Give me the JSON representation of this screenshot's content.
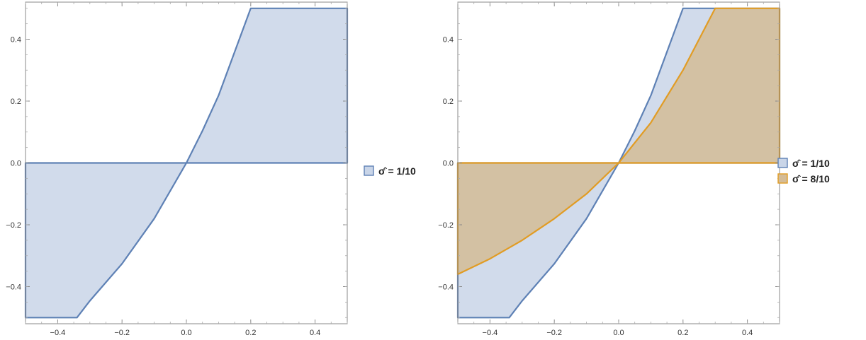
{
  "chart_data": [
    {
      "type": "area",
      "xlim": [
        -0.5,
        0.5
      ],
      "ylim": [
        -0.52,
        0.52
      ],
      "x_ticks": [
        -0.4,
        -0.2,
        0.0,
        0.2,
        0.4
      ],
      "x_tick_labels": [
        "−0.4",
        "−0.2",
        "0.0",
        "0.2",
        "0.4"
      ],
      "y_ticks": [
        -0.4,
        -0.2,
        0.0,
        0.2,
        0.4
      ],
      "y_tick_labels": [
        "−0.4",
        "−0.2",
        "0.0",
        "0.2",
        "0.4"
      ],
      "grid": false,
      "legend": "right",
      "series": [
        {
          "name": "σ̂ = 1/10",
          "color": "#5e81b5",
          "fill": "#c9d5e8",
          "region": [
            [
              0.5,
              0
            ],
            [
              0.5,
              0.5
            ],
            [
              0.2,
              0.5
            ],
            [
              0.1,
              0.218
            ],
            [
              0.05,
              0.104
            ],
            [
              0,
              0
            ],
            [
              -0.1,
              -0.18
            ],
            [
              -0.2,
              -0.326
            ],
            [
              -0.3,
              -0.446
            ],
            [
              -0.34,
              -0.5
            ],
            [
              -0.5,
              -0.5
            ],
            [
              -0.5,
              0
            ],
            [
              0.5,
              0
            ]
          ]
        }
      ]
    },
    {
      "type": "area",
      "xlim": [
        -0.5,
        0.5
      ],
      "ylim": [
        -0.52,
        0.52
      ],
      "x_ticks": [
        -0.4,
        -0.2,
        0.0,
        0.2,
        0.4
      ],
      "x_tick_labels": [
        "−0.4",
        "−0.2",
        "0.0",
        "0.2",
        "0.4"
      ],
      "y_ticks": [
        -0.4,
        -0.2,
        0.0,
        0.2,
        0.4
      ],
      "y_tick_labels": [
        "−0.4",
        "−0.2",
        "0.0",
        "0.2",
        "0.4"
      ],
      "grid": false,
      "legend": "right",
      "series": [
        {
          "name": "σ̂ = 1/10",
          "color": "#5e81b5",
          "fill": "#c9d5e8",
          "region": [
            [
              0.5,
              0
            ],
            [
              0.5,
              0.5
            ],
            [
              0.2,
              0.5
            ],
            [
              0.1,
              0.218
            ],
            [
              0.05,
              0.104
            ],
            [
              0,
              0
            ],
            [
              -0.1,
              -0.18
            ],
            [
              -0.2,
              -0.326
            ],
            [
              -0.3,
              -0.446
            ],
            [
              -0.34,
              -0.5
            ],
            [
              -0.5,
              -0.5
            ],
            [
              -0.5,
              0
            ],
            [
              0.5,
              0
            ]
          ]
        },
        {
          "name": "σ̂ = 8/10",
          "color": "#e19c24",
          "fill": "#d4bc97",
          "region": [
            [
              0.5,
              0
            ],
            [
              0.5,
              0.5
            ],
            [
              0.3,
              0.5
            ],
            [
              0.2,
              0.3
            ],
            [
              0.1,
              0.13
            ],
            [
              0,
              0
            ],
            [
              -0.1,
              -0.1
            ],
            [
              -0.2,
              -0.18
            ],
            [
              -0.3,
              -0.25
            ],
            [
              -0.4,
              -0.31
            ],
            [
              -0.5,
              -0.36
            ],
            [
              -0.5,
              0
            ],
            [
              0.5,
              0
            ]
          ]
        }
      ]
    }
  ]
}
